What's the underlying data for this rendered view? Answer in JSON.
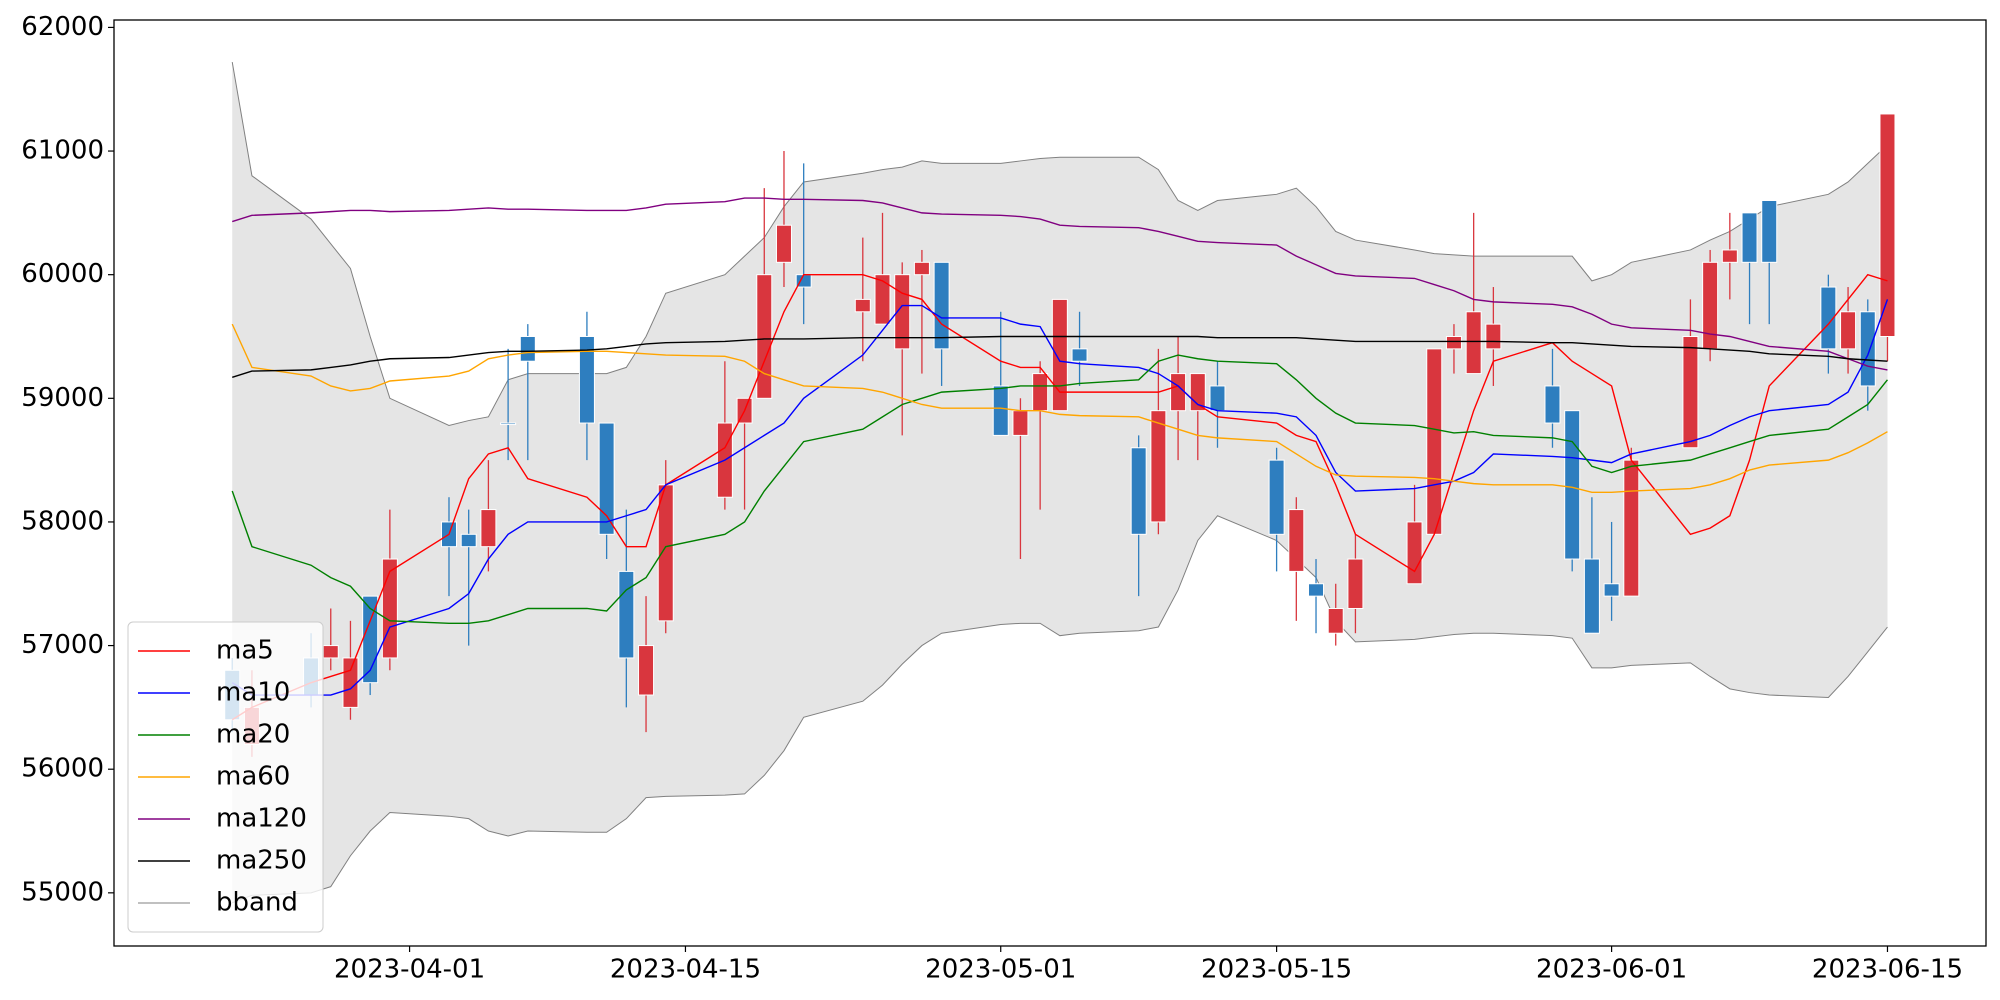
{
  "chart_data": {
    "type": "candlestick",
    "x": [
      "2023-03-23",
      "2023-03-24",
      "2023-03-27",
      "2023-03-28",
      "2023-03-29",
      "2023-03-30",
      "2023-03-31",
      "2023-04-03",
      "2023-04-04",
      "2023-04-05",
      "2023-04-06",
      "2023-04-07",
      "2023-04-10",
      "2023-04-11",
      "2023-04-12",
      "2023-04-13",
      "2023-04-14",
      "2023-04-17",
      "2023-04-18",
      "2023-04-19",
      "2023-04-20",
      "2023-04-21",
      "2023-04-24",
      "2023-04-25",
      "2023-04-26",
      "2023-04-27",
      "2023-04-28",
      "2023-05-01",
      "2023-05-02",
      "2023-05-03",
      "2023-05-04",
      "2023-05-05",
      "2023-05-08",
      "2023-05-09",
      "2023-05-10",
      "2023-05-11",
      "2023-05-12",
      "2023-05-15",
      "2023-05-16",
      "2023-05-17",
      "2023-05-18",
      "2023-05-19",
      "2023-05-22",
      "2023-05-23",
      "2023-05-24",
      "2023-05-25",
      "2023-05-26",
      "2023-05-29",
      "2023-05-30",
      "2023-05-31",
      "2023-06-01",
      "2023-06-02",
      "2023-06-05",
      "2023-06-06",
      "2023-06-07",
      "2023-06-08",
      "2023-06-09",
      "2023-06-12",
      "2023-06-13",
      "2023-06-14",
      "2023-06-15"
    ],
    "open": [
      56800,
      56200,
      56900,
      56900,
      56500,
      57400,
      56900,
      58000,
      57900,
      57800,
      58800,
      59500,
      59500,
      58800,
      57600,
      56600,
      57200,
      58200,
      58800,
      59000,
      60100,
      60000,
      59700,
      59600,
      59400,
      60000,
      60100,
      59100,
      58700,
      58900,
      58900,
      59400,
      58600,
      58000,
      58900,
      58900,
      59100,
      58500,
      57600,
      57500,
      57100,
      57300,
      57500,
      57900,
      59400,
      59200,
      59400,
      59100,
      58900,
      57700,
      57500,
      57400,
      58600,
      59400,
      60100,
      60500,
      60600,
      59900,
      59400,
      59700,
      59500
    ],
    "high": [
      56900,
      56800,
      57100,
      57300,
      57200,
      57400,
      58100,
      58200,
      58100,
      58500,
      59400,
      59600,
      59700,
      58800,
      58100,
      57400,
      58500,
      59300,
      59000,
      60700,
      61000,
      60900,
      60300,
      60500,
      60100,
      60200,
      60100,
      59700,
      59000,
      59300,
      59800,
      59700,
      58700,
      59400,
      59500,
      59200,
      59300,
      58600,
      58200,
      57700,
      57500,
      57900,
      58300,
      59400,
      59600,
      60500,
      59900,
      59400,
      58900,
      58200,
      58000,
      58600,
      59800,
      60200,
      60500,
      60500,
      60600,
      60000,
      59900,
      59800,
      61300
    ],
    "low": [
      56300,
      56100,
      56500,
      56800,
      56400,
      56600,
      56800,
      57400,
      57000,
      57600,
      58500,
      58500,
      58500,
      57700,
      56500,
      56300,
      57100,
      58100,
      58100,
      59000,
      59900,
      59600,
      59300,
      59600,
      58700,
      59200,
      59100,
      58700,
      57700,
      58100,
      58900,
      59100,
      57400,
      57900,
      58500,
      58500,
      58600,
      57600,
      57200,
      57100,
      57000,
      57100,
      57500,
      57900,
      59200,
      59200,
      59100,
      58600,
      57600,
      57100,
      57200,
      57400,
      58600,
      59300,
      59800,
      59600,
      59600,
      59200,
      59200,
      58900,
      59300
    ],
    "close": [
      56400,
      56500,
      56600,
      57000,
      56900,
      56700,
      57700,
      57800,
      57800,
      58100,
      58800,
      59300,
      58800,
      57900,
      56900,
      57000,
      58300,
      58800,
      59000,
      60000,
      60400,
      59900,
      59800,
      60000,
      60000,
      60100,
      59400,
      58700,
      58900,
      59200,
      59800,
      59300,
      57900,
      58900,
      59200,
      59200,
      58900,
      57900,
      58100,
      57400,
      57300,
      57700,
      58000,
      59400,
      59500,
      59700,
      59600,
      58800,
      57700,
      57100,
      57400,
      58500,
      59500,
      60100,
      60200,
      60100,
      60100,
      59400,
      59700,
      59100,
      61300
    ],
    "up_color": "#d9363e",
    "down_color": "#2e7ebf",
    "lines": [
      {
        "name": "ma5",
        "color": "#ff0000",
        "values": [
          56400,
          56500,
          56700,
          56750,
          56800,
          57200,
          57600,
          57900,
          58350,
          58550,
          58600,
          58350,
          58200,
          58050,
          57800,
          57800,
          58300,
          58600,
          58900,
          59300,
          59700,
          60000,
          60000,
          59950,
          59850,
          59800,
          59600,
          59300,
          59250,
          59250,
          59050,
          59050,
          59050,
          59050,
          59100,
          58950,
          58850,
          58800,
          58700,
          58650,
          58300,
          57900,
          57600,
          57900,
          58400,
          58900,
          59300,
          59450,
          59300,
          59200,
          59100,
          58500,
          57900,
          57950,
          58050,
          58500,
          59100,
          59600,
          59800,
          60000,
          59950
        ]
      },
      {
        "name": "ma10",
        "color": "#0000ff",
        "values": [
          56700,
          56600,
          56600,
          56600,
          56650,
          56800,
          57150,
          57300,
          57420,
          57700,
          57900,
          58000,
          58000,
          58000,
          58050,
          58100,
          58300,
          58500,
          58600,
          58700,
          58800,
          59000,
          59350,
          59550,
          59750,
          59750,
          59650,
          59650,
          59600,
          59580,
          59300,
          59280,
          59250,
          59200,
          59100,
          58950,
          58900,
          58880,
          58850,
          58700,
          58400,
          58250,
          58270,
          58300,
          58330,
          58400,
          58550,
          58530,
          58520,
          58500,
          58480,
          58550,
          58650,
          58700,
          58780,
          58850,
          58900,
          58950,
          59050,
          59350,
          59800
        ]
      },
      {
        "name": "ma20",
        "color": "#008000",
        "values": [
          58250,
          57800,
          57650,
          57550,
          57480,
          57300,
          57200,
          57180,
          57180,
          57200,
          57250,
          57300,
          57300,
          57280,
          57450,
          57550,
          57800,
          57900,
          58000,
          58250,
          58450,
          58650,
          58750,
          58850,
          58950,
          59000,
          59050,
          59080,
          59100,
          59100,
          59100,
          59120,
          59150,
          59300,
          59350,
          59320,
          59300,
          59280,
          59150,
          59000,
          58880,
          58800,
          58780,
          58750,
          58720,
          58730,
          58700,
          58680,
          58650,
          58450,
          58400,
          58450,
          58500,
          58550,
          58600,
          58650,
          58700,
          58750,
          58850,
          58950,
          59150
        ]
      },
      {
        "name": "ma60",
        "color": "#ffa500",
        "values": [
          59600,
          59250,
          59180,
          59100,
          59060,
          59080,
          59140,
          59180,
          59220,
          59320,
          59350,
          59370,
          59380,
          59380,
          59370,
          59360,
          59350,
          59340,
          59300,
          59200,
          59150,
          59100,
          59080,
          59050,
          59000,
          58950,
          58920,
          58920,
          58900,
          58900,
          58870,
          58860,
          58850,
          58800,
          58750,
          58700,
          58680,
          58650,
          58550,
          58450,
          58380,
          58370,
          58360,
          58350,
          58330,
          58310,
          58300,
          58300,
          58280,
          58240,
          58240,
          58250,
          58270,
          58300,
          58350,
          58420,
          58460,
          58500,
          58560,
          58640,
          58730
        ]
      },
      {
        "name": "ma120",
        "color": "#800080",
        "values": [
          60430,
          60480,
          60500,
          60510,
          60520,
          60520,
          60510,
          60520,
          60530,
          60540,
          60530,
          60530,
          60520,
          60520,
          60520,
          60540,
          60570,
          60590,
          60620,
          60620,
          60610,
          60610,
          60600,
          60580,
          60540,
          60500,
          60490,
          60480,
          60470,
          60450,
          60400,
          60390,
          60380,
          60350,
          60310,
          60270,
          60260,
          60240,
          60150,
          60080,
          60010,
          59990,
          59970,
          59920,
          59870,
          59800,
          59780,
          59760,
          59740,
          59680,
          59600,
          59570,
          59550,
          59520,
          59500,
          59460,
          59420,
          59380,
          59320,
          59260,
          59230
        ]
      },
      {
        "name": "ma250",
        "color": "#000000",
        "values": [
          59170,
          59220,
          59230,
          59250,
          59270,
          59300,
          59320,
          59330,
          59350,
          59370,
          59380,
          59380,
          59390,
          59400,
          59420,
          59440,
          59450,
          59460,
          59470,
          59480,
          59480,
          59480,
          59490,
          59490,
          59490,
          59490,
          59490,
          59500,
          59500,
          59500,
          59500,
          59500,
          59500,
          59500,
          59500,
          59500,
          59490,
          59490,
          59490,
          59480,
          59470,
          59460,
          59460,
          59460,
          59460,
          59460,
          59460,
          59450,
          59450,
          59440,
          59430,
          59420,
          59410,
          59400,
          59390,
          59380,
          59360,
          59340,
          59320,
          59310,
          59300
        ]
      }
    ],
    "bband": {
      "name": "bband",
      "color": "#808080",
      "fill": "#e5e5e5",
      "upper": [
        61720,
        60800,
        60450,
        60250,
        60050,
        59500,
        59000,
        58780,
        58820,
        58850,
        59150,
        59200,
        59200,
        59200,
        59250,
        59500,
        59850,
        60000,
        60150,
        60300,
        60550,
        60750,
        60820,
        60850,
        60870,
        60920,
        60900,
        60900,
        60920,
        60940,
        60950,
        60950,
        60950,
        60850,
        60600,
        60520,
        60600,
        60650,
        60700,
        60550,
        60350,
        60280,
        60200,
        60170,
        60160,
        60150,
        60150,
        60150,
        60150,
        59950,
        60000,
        60100,
        60200,
        60280,
        60350,
        60450,
        60550,
        60650,
        60750,
        60900,
        61050
      ],
      "lower": [
        54920,
        54980,
        55000,
        55050,
        55300,
        55500,
        55650,
        55620,
        55600,
        55500,
        55460,
        55500,
        55490,
        55490,
        55600,
        55770,
        55780,
        55790,
        55800,
        55950,
        56150,
        56420,
        56550,
        56680,
        56850,
        57000,
        57100,
        57170,
        57180,
        57180,
        57080,
        57100,
        57120,
        57150,
        57450,
        57850,
        58050,
        57850,
        57700,
        57550,
        57200,
        57030,
        57050,
        57070,
        57090,
        57100,
        57100,
        57080,
        57060,
        56820,
        56820,
        56840,
        56860,
        56750,
        56650,
        56620,
        56600,
        56580,
        56750,
        56950,
        57150
      ]
    },
    "xlim": [
      "2023-03-17",
      "2023-06-20"
    ],
    "xticks": [
      "2023-04-01",
      "2023-04-15",
      "2023-05-01",
      "2023-05-15",
      "2023-06-01",
      "2023-06-15"
    ],
    "ylim": [
      54570,
      62060
    ],
    "yticks": [
      55000,
      56000,
      57000,
      58000,
      59000,
      60000,
      61000,
      62000
    ],
    "legend": "lower left"
  }
}
